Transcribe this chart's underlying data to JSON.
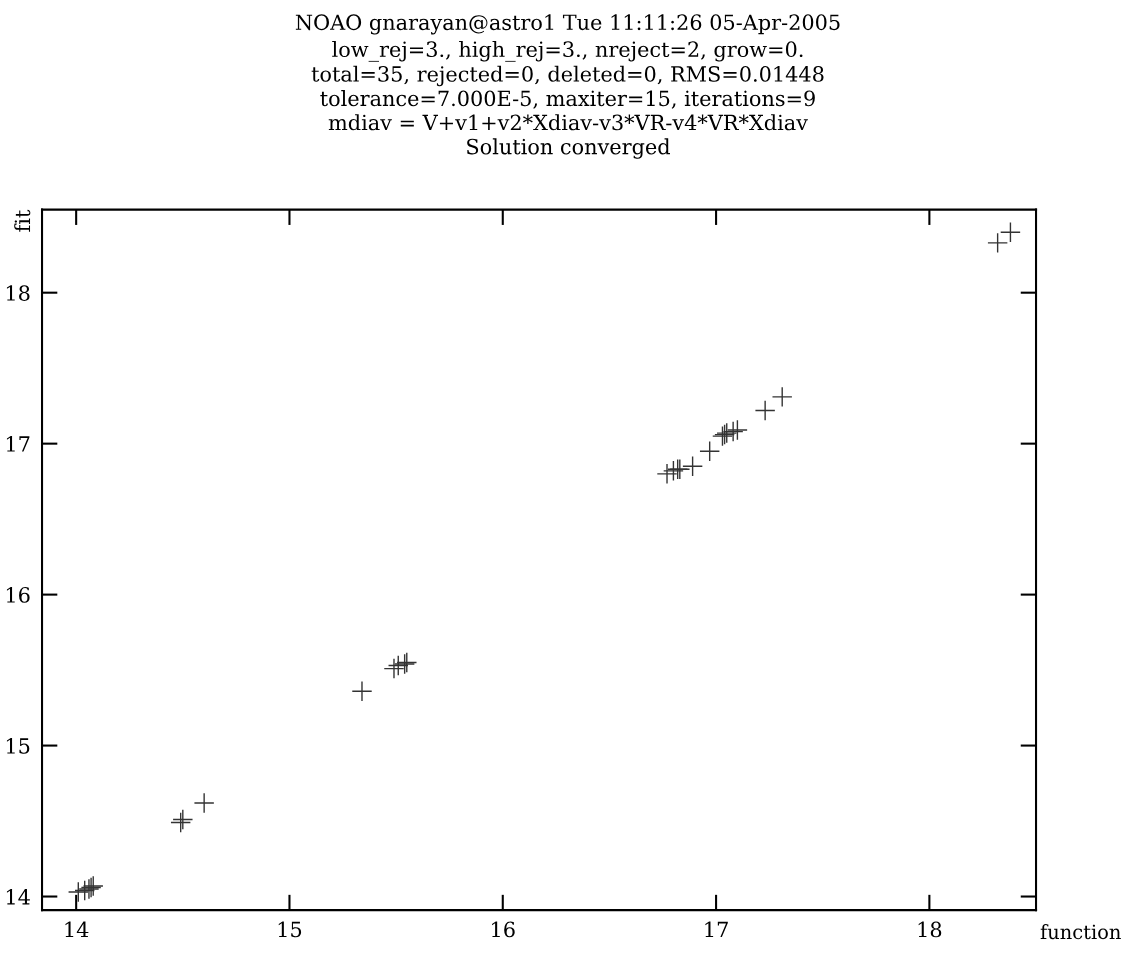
{
  "chart_data": {
    "type": "scatter",
    "title": "NOAO gnarayan@astro1 Tue 11:11:26 05-Apr-2005",
    "subtitle": "low_rej=3., high_rej=3., nreject=2, grow=0.\ntotal=35, rejected=0, deleted=0, RMS=0.01448\ntolerance=7.000E-5, maxiter=15, iterations=9\nmdiav = V+v1+v2*Xdiav-v3*VR-v4*VR*Xdiav\nSolution converged",
    "xlabel": "function",
    "ylabel": "fit",
    "series": [
      {
        "color": "#333333",
        "x": [
          14.01,
          14.04,
          14.06,
          14.07,
          14.08,
          14.49,
          14.5,
          14.6,
          15.34,
          15.49,
          15.51,
          15.54,
          15.55,
          16.77,
          16.8,
          16.82,
          16.83,
          16.89,
          16.97,
          17.03,
          17.04,
          17.05,
          17.08,
          17.1,
          17.23,
          17.31,
          18.32,
          18.38
        ],
        "values": [
          14.03,
          14.04,
          14.05,
          14.06,
          14.07,
          14.49,
          14.51,
          14.62,
          15.36,
          15.51,
          15.53,
          15.54,
          15.55,
          16.8,
          16.82,
          16.83,
          16.83,
          16.85,
          16.95,
          17.05,
          17.06,
          17.07,
          17.08,
          17.09,
          17.22,
          17.31,
          18.33,
          18.4
        ]
      }
    ],
    "xlim": [
      13.84,
      18.5
    ],
    "ylim": [
      13.91,
      18.55
    ],
    "xticks": [
      14,
      15,
      16,
      17,
      18
    ],
    "yticks": [
      14,
      15,
      16,
      17,
      18
    ],
    "marker": "cross",
    "grid": false,
    "legend": false
  }
}
